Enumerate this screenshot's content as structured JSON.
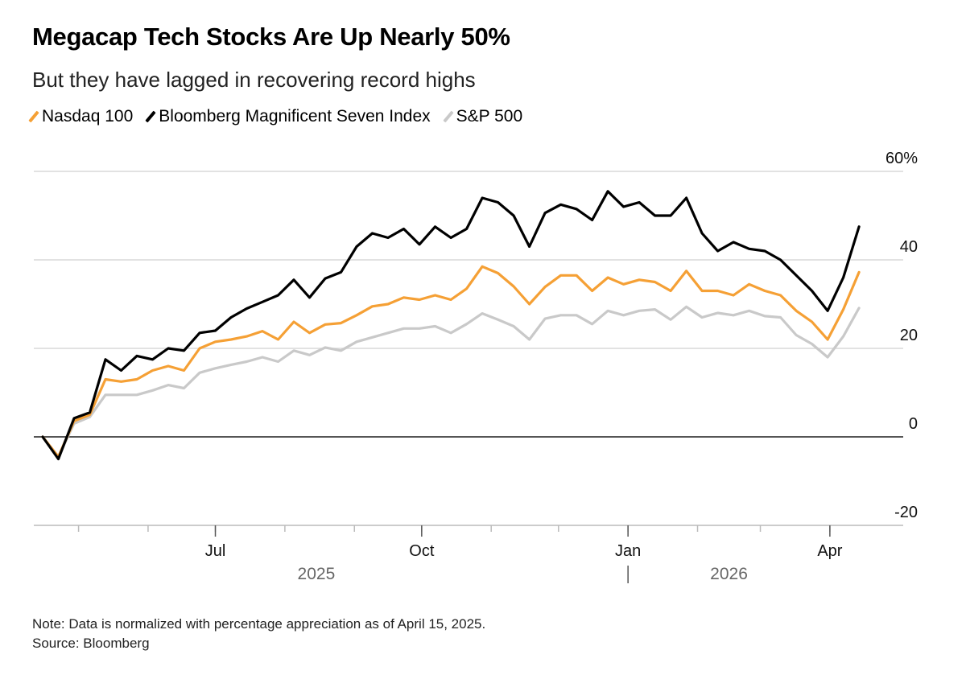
{
  "header": {
    "title": "Megacap Tech Stocks Are Up Nearly 50%",
    "subtitle": "But they have lagged in recovering record highs"
  },
  "footer": {
    "note": "Note: Data is normalized with percentage appreciation as of April 15, 2025.",
    "source": "Source: Bloomberg"
  },
  "chart_data": {
    "type": "line",
    "title": "Megacap Tech Stocks Are Up Nearly 50%",
    "subtitle": "But they have lagged in recovering record highs",
    "legend_placement": "top-left",
    "grid": true,
    "ylim": [
      -20,
      60
    ],
    "yticks": [
      {
        "value": 60,
        "label": "60%"
      },
      {
        "value": 40,
        "label": "40"
      },
      {
        "value": 20,
        "label": "20"
      },
      {
        "value": 0,
        "label": "0"
      },
      {
        "value": -20,
        "label": "-20"
      }
    ],
    "xlim": [
      "2025-04-15",
      "2026-04-14"
    ],
    "xticks_minor": [
      "2025-05-01",
      "2025-06-01",
      "2025-07-01",
      "2025-08-01",
      "2025-09-01",
      "2025-10-01",
      "2025-11-01",
      "2025-12-01",
      "2026-01-01",
      "2026-02-01",
      "2026-03-01",
      "2026-04-01"
    ],
    "xticks": [
      {
        "date": "2025-07-01",
        "label": "Jul"
      },
      {
        "date": "2025-10-01",
        "label": "Oct"
      },
      {
        "date": "2026-01-01",
        "label": "Jan"
      },
      {
        "date": "2026-04-01",
        "label": "Apr"
      }
    ],
    "year_labels": [
      {
        "label": "2025",
        "center": "2025-08-15"
      },
      {
        "label": "2026",
        "center": "2026-02-15"
      }
    ],
    "year_divider": "2026-01-01",
    "x": [
      "2025-04-15",
      "2025-04-22",
      "2025-04-29",
      "2025-05-06",
      "2025-05-13",
      "2025-05-20",
      "2025-05-27",
      "2025-06-03",
      "2025-06-10",
      "2025-06-17",
      "2025-06-24",
      "2025-07-01",
      "2025-07-08",
      "2025-07-15",
      "2025-07-22",
      "2025-07-29",
      "2025-08-05",
      "2025-08-12",
      "2025-08-19",
      "2025-08-26",
      "2025-09-02",
      "2025-09-09",
      "2025-09-16",
      "2025-09-23",
      "2025-09-30",
      "2025-10-07",
      "2025-10-14",
      "2025-10-21",
      "2025-10-28",
      "2025-11-04",
      "2025-11-11",
      "2025-11-18",
      "2025-11-25",
      "2025-12-02",
      "2025-12-09",
      "2025-12-16",
      "2025-12-23",
      "2025-12-30",
      "2026-01-06",
      "2026-01-13",
      "2026-01-20",
      "2026-01-27",
      "2026-02-03",
      "2026-02-10",
      "2026-02-17",
      "2026-02-24",
      "2026-03-03",
      "2026-03-10",
      "2026-03-17",
      "2026-03-24",
      "2026-03-31",
      "2026-04-07",
      "2026-04-14"
    ],
    "series": [
      {
        "name": "S&P 500",
        "color": "#c9c9c9",
        "values": [
          0,
          -4.5,
          3,
          4.5,
          9.5,
          9.5,
          9.5,
          10.5,
          11.7,
          11,
          14.5,
          15.5,
          16.3,
          17,
          18,
          17,
          19.5,
          18.5,
          20.2,
          19.5,
          21.5,
          22.5,
          23.5,
          24.5,
          24.5,
          25,
          23.5,
          25.5,
          27.9,
          26.5,
          25,
          22,
          26.7,
          27.5,
          27.5,
          25.5,
          28.5,
          27.5,
          28.5,
          28.8,
          26.5,
          29.4,
          27,
          28,
          27.5,
          28.5,
          27.3,
          27,
          23,
          21,
          18,
          22.7,
          29.1
        ]
      },
      {
        "name": "Nasdaq 100",
        "color": "#f5a035",
        "values": [
          0,
          -4.5,
          3.6,
          5,
          13,
          12.5,
          13,
          15,
          16,
          15,
          20,
          21.5,
          22,
          22.7,
          23.9,
          22,
          26,
          23.5,
          25.4,
          25.7,
          27.5,
          29.5,
          30,
          31.5,
          31,
          32,
          31,
          33.5,
          38.5,
          37,
          34,
          30,
          33.9,
          36.5,
          36.5,
          33,
          36,
          34.5,
          35.5,
          35,
          33,
          37.5,
          33,
          33,
          32,
          34.5,
          33,
          32,
          28.5,
          26,
          22,
          28.8,
          37.2
        ]
      },
      {
        "name": "Bloomberg Magnificent Seven Index",
        "color": "#000000",
        "values": [
          0,
          -5,
          4.2,
          5.5,
          17.5,
          15,
          18.3,
          17.5,
          20,
          19.5,
          23.5,
          24,
          27,
          29,
          30.5,
          32,
          35.5,
          31.5,
          35.8,
          37.2,
          43,
          46,
          45,
          47,
          43.5,
          47.5,
          45,
          47,
          54,
          53,
          50,
          43,
          50.6,
          52.5,
          51.5,
          49,
          55.5,
          52,
          53,
          50,
          50,
          54,
          46,
          42,
          44,
          42.5,
          42,
          40,
          36.5,
          33,
          28.5,
          36,
          47.5
        ]
      }
    ],
    "legend": [
      {
        "name": "Nasdaq 100",
        "color": "#f5a035"
      },
      {
        "name": "Bloomberg Magnificent Seven Index",
        "color": "#000000"
      },
      {
        "name": "S&P 500",
        "color": "#c9c9c9"
      }
    ]
  }
}
